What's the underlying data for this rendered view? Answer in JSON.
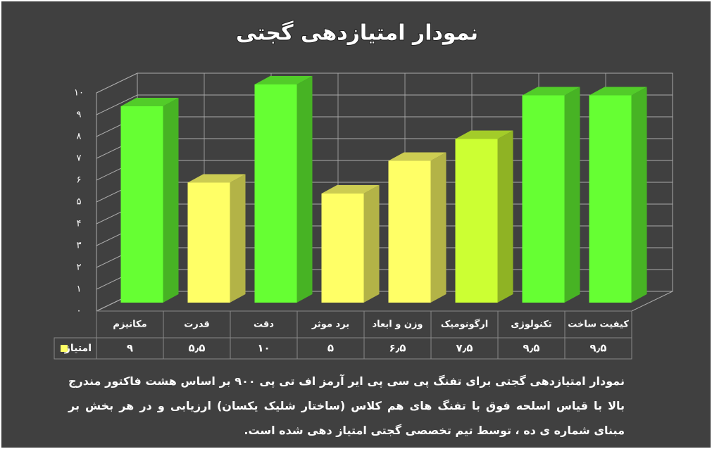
{
  "chart_data": {
    "type": "bar3d",
    "title": "نمودار امتیازدهی گجتی",
    "categories": [
      "مکانیزم",
      "قدرت",
      "دقت",
      "برد موثر",
      "وزن و ابعاد",
      "ارگونومیک",
      "تکنولوژی",
      "کیفیت ساخت"
    ],
    "series": [
      {
        "name": "امتیاز",
        "color": "#ffff66",
        "colors": [
          "#66ff33",
          "#ffff66",
          "#66ff33",
          "#ffff66",
          "#ffff66",
          "#ccff33",
          "#66ff33",
          "#66ff33"
        ],
        "values": [
          9,
          5.5,
          10,
          5,
          6.5,
          7.5,
          9.5,
          9.5
        ],
        "value_labels": [
          "۹",
          "۵٫۵",
          "۱۰",
          "۵",
          "۶٫۵",
          "۷٫۵",
          "۹٫۵",
          "۹٫۵"
        ]
      }
    ],
    "ylim": [
      0,
      10
    ],
    "yticks": [
      {
        "value": 0,
        "label": "۰"
      },
      {
        "value": 1,
        "label": "۱"
      },
      {
        "value": 2,
        "label": "۲"
      },
      {
        "value": 3,
        "label": "۳"
      },
      {
        "value": 4,
        "label": "۴"
      },
      {
        "value": 5,
        "label": "۵"
      },
      {
        "value": 6,
        "label": "۶"
      },
      {
        "value": 7,
        "label": "۷"
      },
      {
        "value": 8,
        "label": "۸"
      },
      {
        "value": 9,
        "label": "۹"
      },
      {
        "value": 10,
        "label": "۱۰"
      }
    ],
    "grid": true,
    "caption": "نمودار امتیازدهی گجتی برای تفنگ پی سی پی  ایر آرمز اف تی پی ۹۰۰ بر اساس هشت فاکتور مندرج بالا با قیاس اسلحه فوق با تفنگ های هم کلاس (ساختار شلیک یکسان) ارزیابی و در هر بخش بر مبنای شماره ی ده ، توسط تیم تخصصی گجتی امتیاز دهی شده است."
  }
}
